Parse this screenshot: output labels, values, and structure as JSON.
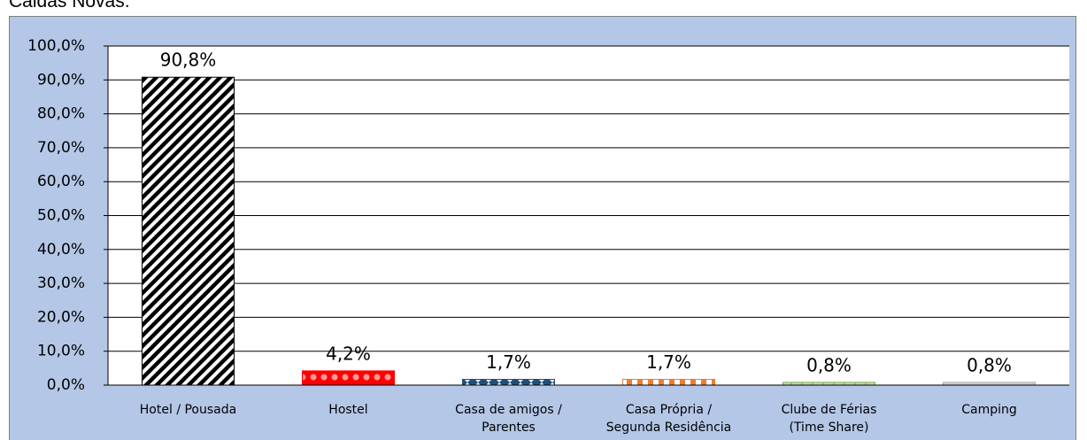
{
  "caption": "Caldas Novas.",
  "chart_data": {
    "type": "bar",
    "categories": [
      "Hotel / Pousada",
      "Hostel",
      "Casa de amigos / Parentes",
      "Casa Própria / Segunda Residência",
      "Clube de Férias (Time Share)",
      "Camping"
    ],
    "values": [
      90.8,
      4.2,
      1.7,
      1.7,
      0.8,
      0.8
    ],
    "value_labels": [
      "90,8%",
      "4,2%",
      "1,7%",
      "1,7%",
      "0,8%",
      "0,8%"
    ],
    "colors": [
      "#000000",
      "#ff0000",
      "#1f4e79",
      "#ed7d31",
      "#70ad47",
      "#a5a5a5"
    ],
    "ylim": [
      0,
      100
    ],
    "yticks": [
      {
        "value": 0,
        "label": "0,0%"
      },
      {
        "value": 10,
        "label": "10,0%"
      },
      {
        "value": 20,
        "label": "20,0%"
      },
      {
        "value": 30,
        "label": "30,0%"
      },
      {
        "value": 40,
        "label": "40,0%"
      },
      {
        "value": 50,
        "label": "50,0%"
      },
      {
        "value": 60,
        "label": "60,0%"
      },
      {
        "value": 70,
        "label": "70,0%"
      },
      {
        "value": 80,
        "label": "80,0%"
      },
      {
        "value": 90,
        "label": "90,0%"
      },
      {
        "value": 100,
        "label": "100,0%"
      }
    ],
    "grid": true
  }
}
